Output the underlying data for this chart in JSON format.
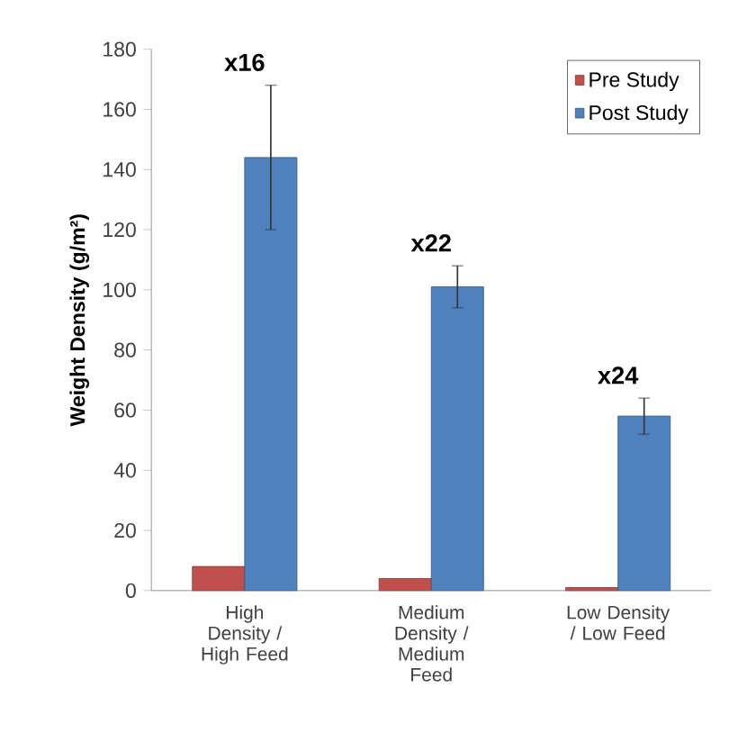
{
  "chart_data": {
    "type": "bar",
    "ylabel": "Weight Density (g/m²)",
    "categories": [
      "High Density / High Feed",
      "Medium Density / Medium Feed",
      "Low Density / Low Feed"
    ],
    "series": [
      {
        "name": "Pre Study",
        "color": "#c0504d",
        "values": [
          8,
          4,
          1
        ]
      },
      {
        "name": "Post Study",
        "color": "#4f81bd",
        "values": [
          144,
          101,
          58
        ],
        "errors": [
          24,
          7,
          6
        ]
      }
    ],
    "ylim": [
      0,
      180
    ],
    "yticks": [
      0,
      20,
      40,
      60,
      80,
      100,
      120,
      140,
      160,
      180
    ],
    "legend": "top right",
    "grid": false,
    "annotations": [
      "x16",
      "x22",
      "x24"
    ]
  }
}
